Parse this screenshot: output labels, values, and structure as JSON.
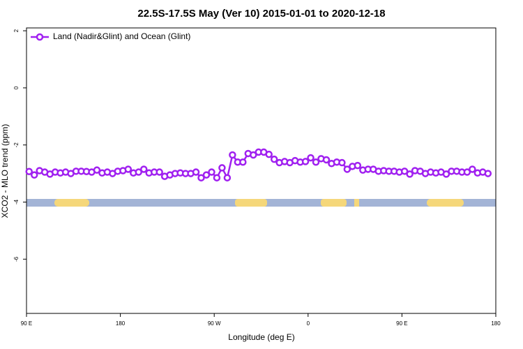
{
  "chart_data": {
    "type": "line",
    "title": "22.5S-17.5S May (Ver 10)   2015-01-01 to 2020-12-18",
    "x_label": "Longitude (deg E)",
    "y_label": "XCO2 - MLO trend (ppm)",
    "x": [
      92.5,
      97.5,
      102.5,
      107.5,
      112.5,
      117.5,
      122.5,
      127.5,
      132.5,
      137.5,
      142.5,
      147.5,
      152.5,
      157.5,
      162.5,
      167.5,
      172.5,
      177.5,
      182.5,
      187.5,
      192.5,
      197.5,
      202.5,
      207.5,
      212.5,
      217.5,
      222.5,
      227.5,
      232.5,
      237.5,
      242.5,
      247.5,
      252.5,
      257.5,
      262.5,
      267.5,
      272.5,
      277.5,
      282.5,
      287.5,
      292.5,
      297.5,
      302.5,
      307.5,
      312.5,
      317.5,
      322.5,
      327.5,
      332.5,
      337.5,
      342.5,
      347.5,
      352.5,
      357.5,
      362.5,
      367.5,
      372.5,
      377.5,
      382.5,
      387.5,
      392.5,
      397.5,
      402.5,
      407.5,
      412.5,
      417.5,
      422.5,
      427.5,
      432.5,
      437.5,
      442.5,
      447.5,
      452.5,
      457.5,
      462.5,
      467.5,
      472.5,
      477.5,
      482.5,
      487.5,
      492.5,
      497.5,
      502.5,
      507.5,
      512.5,
      517.5,
      522.5,
      527.5,
      532.5
    ],
    "series": [
      {
        "name": "Land (Nadir&Glint) and Ocean (Glint)",
        "color": "#a020f0",
        "values": [
          -2.93,
          -3.05,
          -2.9,
          -2.95,
          -3.02,
          -2.95,
          -2.98,
          -2.95,
          -3.0,
          -2.92,
          -2.92,
          -2.93,
          -2.95,
          -2.88,
          -2.98,
          -2.95,
          -3.0,
          -2.92,
          -2.9,
          -2.85,
          -2.98,
          -2.95,
          -2.85,
          -2.98,
          -2.95,
          -2.95,
          -3.1,
          -3.05,
          -3.0,
          -2.98,
          -3.0,
          -3.0,
          -2.95,
          -3.15,
          -3.05,
          -2.95,
          -3.15,
          -2.8,
          -3.15,
          -2.35,
          -2.6,
          -2.6,
          -2.3,
          -2.35,
          -2.25,
          -2.25,
          -2.33,
          -2.5,
          -2.62,
          -2.58,
          -2.62,
          -2.55,
          -2.6,
          -2.58,
          -2.45,
          -2.6,
          -2.48,
          -2.52,
          -2.65,
          -2.6,
          -2.62,
          -2.85,
          -2.75,
          -2.72,
          -2.88,
          -2.85,
          -2.85,
          -2.92,
          -2.9,
          -2.92,
          -2.92,
          -2.95,
          -2.92,
          -3.02,
          -2.9,
          -2.92,
          -3.0,
          -2.95,
          -2.98,
          -2.95,
          -3.02,
          -2.92,
          -2.92,
          -2.95,
          -2.95,
          -2.85,
          -2.98,
          -2.95,
          -3.0
        ]
      }
    ],
    "xlim": [
      90,
      540
    ],
    "xticks": [
      {
        "value": 90,
        "label": "90 E"
      },
      180,
      {
        "value": 270,
        "label": "90 W"
      },
      {
        "value": 360,
        "label": "0"
      },
      {
        "value": 450,
        "label": "90 E"
      },
      {
        "value": 540,
        "label": "180"
      }
    ],
    "ylim": [
      -7.9,
      2.1
    ],
    "yticks": [
      -6,
      -4,
      -2,
      0,
      2
    ],
    "legend": "top-left"
  }
}
